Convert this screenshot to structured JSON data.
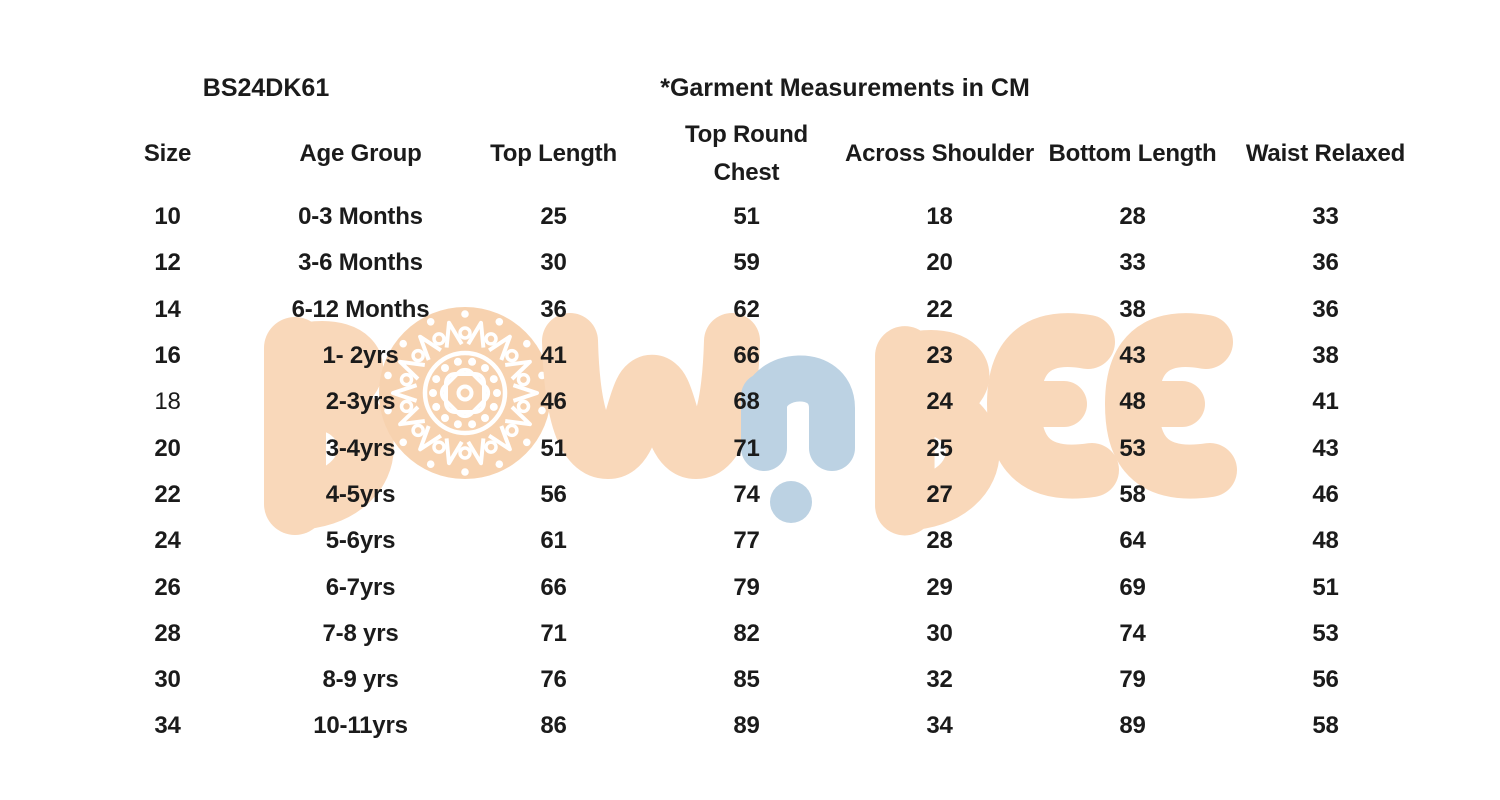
{
  "header": {
    "style_code": "BS24DK61",
    "measurement_note": "*Garment Measurements in CM"
  },
  "chart_data": {
    "type": "table",
    "title": "*Garment Measurements in CM",
    "style_code": "BS24DK61",
    "columns": [
      "Size",
      "Age Group",
      "Top Length",
      "Top Round Chest",
      "Across Shoulder",
      "Bottom Length",
      "Waist Relaxed"
    ],
    "rows": [
      [
        "10",
        "0-3 Months",
        "25",
        "51",
        "18",
        "28",
        "33"
      ],
      [
        "12",
        "3-6 Months",
        "30",
        "59",
        "20",
        "33",
        "36"
      ],
      [
        "14",
        "6-12 Months",
        "36",
        "62",
        "22",
        "38",
        "36"
      ],
      [
        "16",
        "1- 2yrs",
        "41",
        "66",
        "23",
        "43",
        "38"
      ],
      [
        "18",
        "2-3yrs",
        "46",
        "68",
        "24",
        "48",
        "41"
      ],
      [
        "20",
        "3-4yrs",
        "51",
        "71",
        "25",
        "53",
        "43"
      ],
      [
        "22",
        "4-5yrs",
        "56",
        "74",
        "27",
        "58",
        "46"
      ],
      [
        "24",
        "5-6yrs",
        "61",
        "77",
        "28",
        "64",
        "48"
      ],
      [
        "26",
        "6-7yrs",
        "66",
        "79",
        "29",
        "69",
        "51"
      ],
      [
        "28",
        "7-8 yrs",
        "71",
        "82",
        "30",
        "74",
        "53"
      ],
      [
        "30",
        "8-9 yrs",
        "76",
        "85",
        "32",
        "79",
        "56"
      ],
      [
        "34",
        "10-11yrs",
        "86",
        "89",
        "34",
        "89",
        "58"
      ]
    ],
    "light_cells": [
      [
        4,
        0
      ]
    ],
    "units": "CM",
    "layout": "7 equal columns, watermark logo behind rows 3-8"
  },
  "watermark": {
    "text": "BOWnBEE",
    "mandala": "white mandala medallion inside the O"
  },
  "colors": {
    "peach": "#F9D8BA",
    "peach_deep": "#F7D2AF",
    "blue": "#BCD2E3",
    "ink": "#1b1b1b"
  }
}
